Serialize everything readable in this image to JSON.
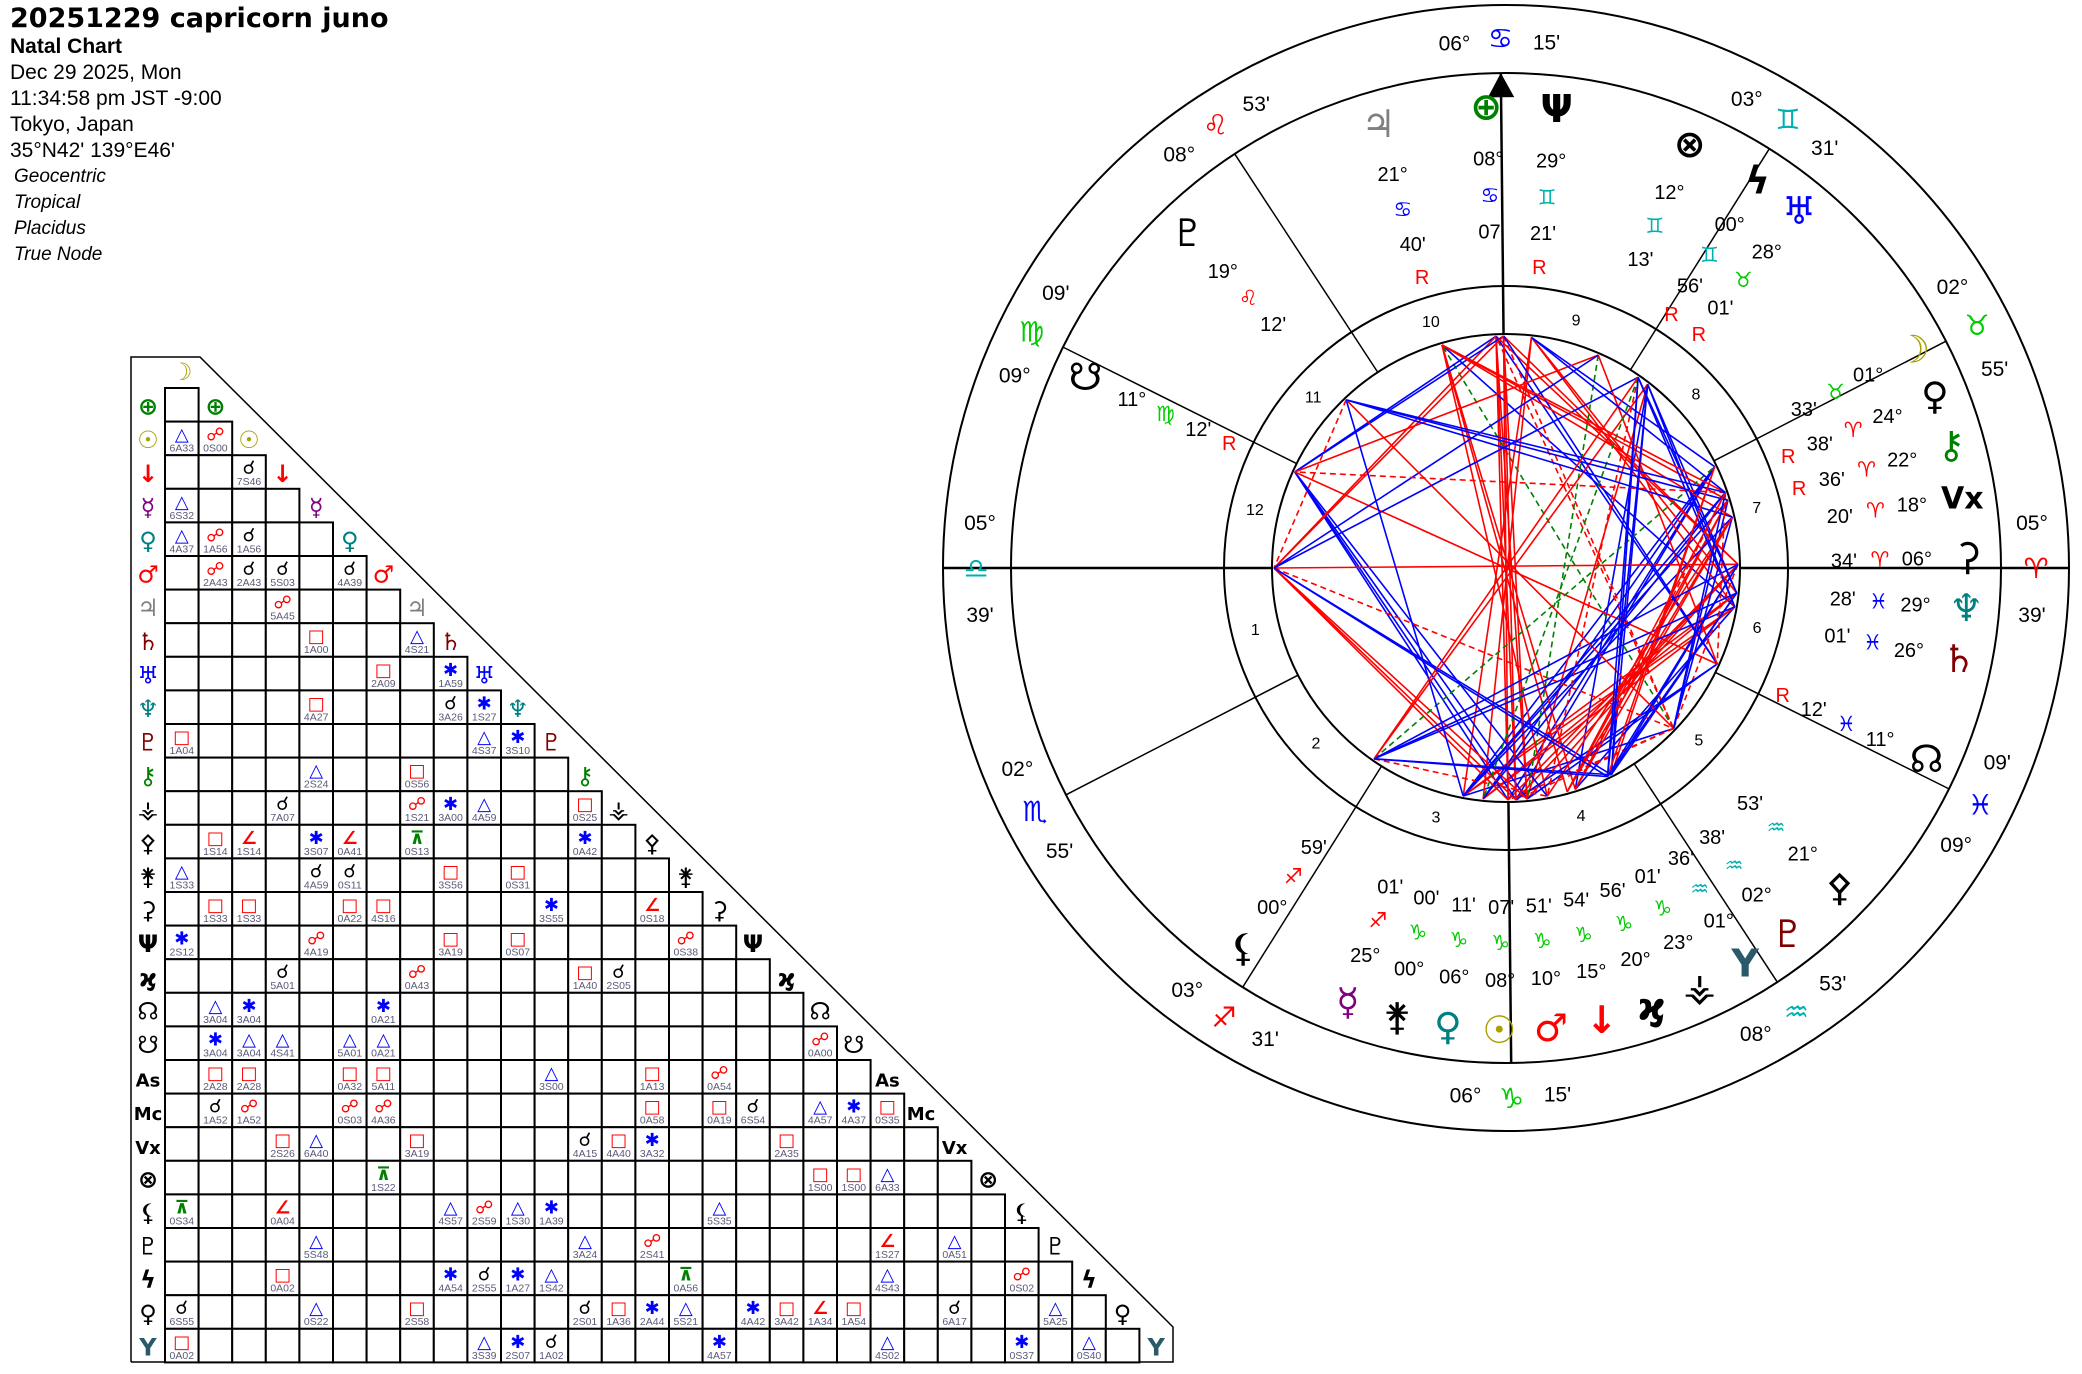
{
  "header": {
    "title": "20251229 capricorn juno",
    "chart_type": "Natal Chart",
    "date": "Dec 29 2025, Mon",
    "time": "11:34:58 pm  JST -9:00",
    "place": "Tokyo, Japan",
    "coords": "35°N42' 139°E46'",
    "options": [
      "Geocentric",
      "Tropical",
      "Placidus",
      "True Node"
    ]
  },
  "colors": {
    "red": "#ff0000",
    "blue": "#0000ff",
    "green": "#008000",
    "fire": "#ff0000",
    "earth": "#00cc00",
    "air": "#00b0b0",
    "water": "#0000ff"
  },
  "bodies": [
    {
      "id": "moon",
      "glyph": "☽",
      "color": "#a8a000"
    },
    {
      "id": "earth",
      "glyph": "⊕",
      "color": "#008000"
    },
    {
      "id": "sun",
      "glyph": "☉",
      "color": "#a8a000"
    },
    {
      "id": "arrow-point",
      "glyph": "↓",
      "color": "#ff0000"
    },
    {
      "id": "mercury",
      "glyph": "☿",
      "color": "#800080"
    },
    {
      "id": "venus",
      "glyph": "♀",
      "color": "#008080"
    },
    {
      "id": "mars",
      "glyph": "♂",
      "color": "#ff0000"
    },
    {
      "id": "jupiter",
      "glyph": "♃",
      "color": "#808080"
    },
    {
      "id": "saturn",
      "glyph": "♄",
      "color": "#800000"
    },
    {
      "id": "uranus",
      "glyph": "♅",
      "color": "#0000ff"
    },
    {
      "id": "neptune",
      "glyph": "♆",
      "color": "#008080"
    },
    {
      "id": "pluto",
      "glyph": "♇",
      "color": "#800000"
    },
    {
      "id": "chiron",
      "glyph": "⚷",
      "color": "#008000"
    },
    {
      "id": "vesta",
      "glyph": "⚶",
      "color": "#000000"
    },
    {
      "id": "pallas",
      "glyph": "⚴",
      "color": "#000000"
    },
    {
      "id": "juno",
      "glyph": "⚵",
      "color": "#000000"
    },
    {
      "id": "ceres",
      "glyph": "⚳",
      "color": "#000000"
    },
    {
      "id": "trident-body",
      "glyph": "Ψ",
      "color": "#000000"
    },
    {
      "id": "key-body",
      "glyph": "ϗ",
      "color": "#000000"
    },
    {
      "id": "north-node",
      "glyph": "☊",
      "color": "#000000"
    },
    {
      "id": "south-node",
      "glyph": "☋",
      "color": "#000000"
    },
    {
      "id": "ascendant",
      "glyph": "As",
      "color": "#000000"
    },
    {
      "id": "midheaven",
      "glyph": "Mc",
      "color": "#000000"
    },
    {
      "id": "vertex",
      "glyph": "Vx",
      "color": "#000000"
    },
    {
      "id": "part-of-fortune",
      "glyph": "⊗",
      "color": "#000000"
    },
    {
      "id": "lilith",
      "glyph": "⚸",
      "color": "#000000"
    },
    {
      "id": "proserpina",
      "glyph": "♇",
      "color": "#000000"
    },
    {
      "id": "sedna",
      "glyph": "ϟ",
      "color": "#000000"
    },
    {
      "id": "eris",
      "glyph": "♀",
      "color": "#000000"
    },
    {
      "id": "y-point",
      "glyph": "Y",
      "color": "#2a5a6a"
    }
  ],
  "aspect_types": {
    "conj": {
      "glyph": "☌",
      "color": "#000000"
    },
    "opp": {
      "glyph": "☍",
      "color": "#ff0000"
    },
    "tri": {
      "glyph": "△",
      "color": "#0000ff"
    },
    "sq": {
      "glyph": "□",
      "color": "#ff0000"
    },
    "sex": {
      "glyph": "✱",
      "color": "#0000ff"
    },
    "semisq": {
      "glyph": "∠",
      "color": "#ff0000"
    },
    "sesq": {
      "glyph": "□",
      "color": "#ff0000"
    },
    "quinc": {
      "glyph": "⊼",
      "color": "#008000"
    }
  },
  "aspects": [
    [
      2,
      0,
      "tri",
      "6A33"
    ],
    [
      2,
      1,
      "opp",
      "0S00"
    ],
    [
      3,
      2,
      "conj",
      "7S46"
    ],
    [
      4,
      0,
      "tri",
      "6S32"
    ],
    [
      5,
      0,
      "tri",
      "4A37"
    ],
    [
      5,
      1,
      "opp",
      "1A56"
    ],
    [
      5,
      2,
      "conj",
      "1A56"
    ],
    [
      6,
      1,
      "opp",
      "2A43"
    ],
    [
      6,
      2,
      "conj",
      "2A43"
    ],
    [
      6,
      3,
      "conj",
      "5S03"
    ],
    [
      6,
      5,
      "conj",
      "4A39"
    ],
    [
      7,
      3,
      "opp",
      "5A45"
    ],
    [
      8,
      4,
      "sq",
      "1A00"
    ],
    [
      8,
      7,
      "tri",
      "4S21"
    ],
    [
      9,
      6,
      "sq",
      "2A09"
    ],
    [
      9,
      8,
      "sex",
      "1A59"
    ],
    [
      10,
      4,
      "sq",
      "4A27"
    ],
    [
      10,
      8,
      "conj",
      "3A26"
    ],
    [
      10,
      9,
      "sex",
      "1S27"
    ],
    [
      11,
      0,
      "sq",
      "1A04"
    ],
    [
      11,
      9,
      "tri",
      "4S37"
    ],
    [
      11,
      10,
      "sex",
      "3S10"
    ],
    [
      12,
      4,
      "tri",
      "2S24"
    ],
    [
      12,
      7,
      "sq",
      "0S56"
    ],
    [
      13,
      3,
      "conj",
      "7A07"
    ],
    [
      13,
      7,
      "opp",
      "1S21"
    ],
    [
      13,
      8,
      "sex",
      "3A00"
    ],
    [
      13,
      9,
      "tri",
      "4A59"
    ],
    [
      13,
      12,
      "sq",
      "0S25"
    ],
    [
      14,
      1,
      "sesq",
      "1S14"
    ],
    [
      14,
      2,
      "semisq",
      "1S14"
    ],
    [
      14,
      4,
      "sex",
      "3S07"
    ],
    [
      14,
      5,
      "semisq",
      "0A41"
    ],
    [
      14,
      7,
      "quinc",
      "0S13"
    ],
    [
      14,
      12,
      "sex",
      "0A42"
    ],
    [
      15,
      0,
      "tri",
      "1S33"
    ],
    [
      15,
      4,
      "conj",
      "4A59"
    ],
    [
      15,
      5,
      "conj",
      "0S11"
    ],
    [
      15,
      8,
      "sq",
      "3S56"
    ],
    [
      15,
      10,
      "sq",
      "0S31"
    ],
    [
      16,
      1,
      "sq",
      "1S33"
    ],
    [
      16,
      2,
      "sq",
      "1S33"
    ],
    [
      16,
      5,
      "sq",
      "0A22"
    ],
    [
      16,
      6,
      "sq",
      "4S16"
    ],
    [
      16,
      11,
      "sex",
      "3S55"
    ],
    [
      16,
      14,
      "semisq",
      "0S18"
    ],
    [
      17,
      0,
      "sex",
      "2S12"
    ],
    [
      17,
      4,
      "opp",
      "4A19"
    ],
    [
      17,
      8,
      "sq",
      "3A19"
    ],
    [
      17,
      10,
      "sq",
      "0S07"
    ],
    [
      17,
      15,
      "opp",
      "0S38"
    ],
    [
      18,
      3,
      "conj",
      "5A01"
    ],
    [
      18,
      7,
      "opp",
      "0A43"
    ],
    [
      18,
      12,
      "sq",
      "1A40"
    ],
    [
      18,
      13,
      "conj",
      "2S05"
    ],
    [
      19,
      1,
      "tri",
      "3A04"
    ],
    [
      19,
      2,
      "sex",
      "3A04"
    ],
    [
      19,
      6,
      "sex",
      "0A21"
    ],
    [
      20,
      1,
      "sex",
      "3A04"
    ],
    [
      20,
      2,
      "tri",
      "3A04"
    ],
    [
      20,
      3,
      "tri",
      "4S41"
    ],
    [
      20,
      5,
      "tri",
      "5A01"
    ],
    [
      20,
      6,
      "tri",
      "0A21"
    ],
    [
      20,
      19,
      "opp",
      "0A00"
    ],
    [
      21,
      1,
      "sq",
      "2A28"
    ],
    [
      21,
      2,
      "sq",
      "2A28"
    ],
    [
      21,
      5,
      "sq",
      "0A32"
    ],
    [
      21,
      6,
      "sq",
      "5A11"
    ],
    [
      21,
      11,
      "tri",
      "3S00"
    ],
    [
      21,
      14,
      "sesq",
      "1A13"
    ],
    [
      21,
      16,
      "opp",
      "0A54"
    ],
    [
      22,
      1,
      "conj",
      "1A52"
    ],
    [
      22,
      2,
      "opp",
      "1A52"
    ],
    [
      22,
      5,
      "opp",
      "0S03"
    ],
    [
      22,
      6,
      "opp",
      "4A36"
    ],
    [
      22,
      14,
      "sesq",
      "0A58"
    ],
    [
      22,
      16,
      "sq",
      "0A19"
    ],
    [
      22,
      17,
      "conj",
      "6S54"
    ],
    [
      22,
      19,
      "tri",
      "4A57"
    ],
    [
      22,
      20,
      "sex",
      "4A37"
    ],
    [
      22,
      21,
      "sq",
      "0S35"
    ],
    [
      23,
      3,
      "sq",
      "2S26"
    ],
    [
      23,
      4,
      "tri",
      "6A40"
    ],
    [
      23,
      7,
      "sq",
      "3A19"
    ],
    [
      23,
      12,
      "conj",
      "4A15"
    ],
    [
      23,
      13,
      "sq",
      "4A40"
    ],
    [
      23,
      14,
      "sex",
      "3A32"
    ],
    [
      23,
      18,
      "sq",
      "2A35"
    ],
    [
      24,
      6,
      "quinc",
      "1S22"
    ],
    [
      24,
      19,
      "sq",
      "1S00"
    ],
    [
      24,
      20,
      "sq",
      "1S00"
    ],
    [
      24,
      21,
      "tri",
      "6A33"
    ],
    [
      25,
      0,
      "quinc",
      "0S34"
    ],
    [
      25,
      3,
      "semisq",
      "0A04"
    ],
    [
      25,
      8,
      "tri",
      "4S57"
    ],
    [
      25,
      9,
      "opp",
      "2S59"
    ],
    [
      25,
      10,
      "tri",
      "1S30"
    ],
    [
      25,
      11,
      "sex",
      "1A39"
    ],
    [
      25,
      16,
      "tri",
      "5S35"
    ],
    [
      26,
      4,
      "tri",
      "5S48"
    ],
    [
      26,
      12,
      "tri",
      "3A24"
    ],
    [
      26,
      14,
      "opp",
      "2S41"
    ],
    [
      26,
      21,
      "semisq",
      "1S27"
    ],
    [
      26,
      23,
      "tri",
      "0A51"
    ],
    [
      27,
      3,
      "sesq",
      "0A02"
    ],
    [
      27,
      8,
      "sex",
      "4A54"
    ],
    [
      27,
      9,
      "conj",
      "2S55"
    ],
    [
      27,
      10,
      "sex",
      "1A27"
    ],
    [
      27,
      11,
      "tri",
      "1S42"
    ],
    [
      27,
      15,
      "quinc",
      "0A56"
    ],
    [
      27,
      21,
      "tri",
      "4S43"
    ],
    [
      27,
      25,
      "opp",
      "0S02"
    ],
    [
      28,
      0,
      "conj",
      "6S55"
    ],
    [
      28,
      4,
      "tri",
      "0S22"
    ],
    [
      28,
      7,
      "sq",
      "2S58"
    ],
    [
      28,
      12,
      "conj",
      "2S01"
    ],
    [
      28,
      13,
      "sesq",
      "1A36"
    ],
    [
      28,
      14,
      "sex",
      "2A44"
    ],
    [
      28,
      15,
      "tri",
      "5S21"
    ],
    [
      28,
      17,
      "sex",
      "4A42"
    ],
    [
      28,
      18,
      "sq",
      "3A42"
    ],
    [
      28,
      19,
      "semisq",
      "1A34"
    ],
    [
      28,
      20,
      "sesq",
      "1A54"
    ],
    [
      28,
      23,
      "conj",
      "6A17"
    ],
    [
      28,
      26,
      "tri",
      "5A25"
    ],
    [
      29,
      0,
      "sq",
      "0A02"
    ],
    [
      29,
      9,
      "tri",
      "3S39"
    ],
    [
      29,
      10,
      "sex",
      "2S07"
    ],
    [
      29,
      11,
      "conj",
      "1A02"
    ],
    [
      29,
      16,
      "sex",
      "4A57"
    ],
    [
      29,
      21,
      "tri",
      "4S02"
    ],
    [
      29,
      25,
      "sex",
      "0S37"
    ],
    [
      29,
      27,
      "tri",
      "0S40"
    ]
  ],
  "signs": [
    {
      "glyph": "♈",
      "el": "fire"
    },
    {
      "glyph": "♉",
      "el": "earth"
    },
    {
      "glyph": "♊",
      "el": "air"
    },
    {
      "glyph": "♋",
      "el": "water"
    },
    {
      "glyph": "♌",
      "el": "fire"
    },
    {
      "glyph": "♍",
      "el": "earth"
    },
    {
      "glyph": "♎",
      "el": "air"
    },
    {
      "glyph": "♏",
      "el": "water"
    },
    {
      "glyph": "♐",
      "el": "fire"
    },
    {
      "glyph": "♑",
      "el": "earth"
    },
    {
      "glyph": "♒",
      "el": "air"
    },
    {
      "glyph": "♓",
      "el": "water"
    }
  ],
  "wheel": {
    "house_numbers": [
      "1",
      "2",
      "3",
      "4",
      "5",
      "6",
      "7",
      "8",
      "9",
      "10",
      "11",
      "12"
    ],
    "cusps": [
      {
        "house": 1,
        "deg": "05°",
        "sign": 6,
        "min": "39'",
        "d": 5,
        "m": 39
      },
      {
        "house": 2,
        "deg": "02°",
        "sign": 7,
        "min": "55'",
        "d": 2,
        "m": 55
      },
      {
        "house": 3,
        "deg": "03°",
        "sign": 8,
        "min": "31'",
        "d": 3,
        "m": 31
      },
      {
        "house": 4,
        "deg": "06°",
        "sign": 9,
        "min": "15'",
        "d": 6,
        "m": 15
      },
      {
        "house": 5,
        "deg": "08°",
        "sign": 10,
        "min": "53'",
        "d": 8,
        "m": 53
      },
      {
        "house": 6,
        "deg": "09°",
        "sign": 11,
        "min": "09'",
        "d": 9,
        "m": 9
      },
      {
        "house": 7,
        "deg": "05°",
        "sign": 0,
        "min": "39'",
        "d": 5,
        "m": 39
      },
      {
        "house": 8,
        "deg": "02°",
        "sign": 1,
        "min": "55'",
        "d": 2,
        "m": 55
      },
      {
        "house": 9,
        "deg": "03°",
        "sign": 2,
        "min": "31'",
        "d": 3,
        "m": 31
      },
      {
        "house": 10,
        "deg": "06°",
        "sign": 3,
        "min": "15'",
        "d": 6,
        "m": 15
      },
      {
        "house": 11,
        "deg": "08°",
        "sign": 4,
        "min": "53'",
        "d": 8,
        "m": 53
      },
      {
        "house": 12,
        "deg": "09°",
        "sign": 5,
        "min": "09'",
        "d": 9,
        "m": 9
      }
    ],
    "retro_label": "R",
    "planets": [
      {
        "body": 0,
        "deg": "01°",
        "sign": 1,
        "min": "33'",
        "d": 1,
        "m": 33,
        "retro": false
      },
      {
        "body": 1,
        "deg": "08°",
        "sign": 3,
        "min": "07'",
        "d": 8,
        "m": 7,
        "retro": false
      },
      {
        "body": 2,
        "deg": "08°",
        "sign": 9,
        "min": "07'",
        "d": 8,
        "m": 7,
        "retro": false
      },
      {
        "body": 3,
        "deg": "15°",
        "sign": 9,
        "min": "54'",
        "d": 15,
        "m": 54,
        "retro": false
      },
      {
        "body": 4,
        "deg": "25°",
        "sign": 8,
        "min": "01'",
        "d": 25,
        "m": 1,
        "retro": false
      },
      {
        "body": 5,
        "deg": "06°",
        "sign": 9,
        "min": "11'",
        "d": 6,
        "m": 11,
        "retro": false
      },
      {
        "body": 6,
        "deg": "10°",
        "sign": 9,
        "min": "51'",
        "d": 10,
        "m": 51,
        "retro": false
      },
      {
        "body": 7,
        "deg": "21°",
        "sign": 3,
        "min": "40'",
        "d": 21,
        "m": 40,
        "retro": true
      },
      {
        "body": 8,
        "deg": "26°",
        "sign": 11,
        "min": "01'",
        "d": 26,
        "m": 1,
        "retro": false
      },
      {
        "body": 9,
        "deg": "28°",
        "sign": 1,
        "min": "01'",
        "d": 28,
        "m": 1,
        "retro": true
      },
      {
        "body": 10,
        "deg": "29°",
        "sign": 11,
        "min": "28'",
        "d": 29,
        "m": 28,
        "retro": false
      },
      {
        "body": 11,
        "deg": "02°",
        "sign": 10,
        "min": "38'",
        "d": 2,
        "m": 38,
        "retro": false
      },
      {
        "body": 12,
        "deg": "22°",
        "sign": 0,
        "min": "36'",
        "d": 22,
        "m": 36,
        "retro": true
      },
      {
        "body": 13,
        "deg": "23°",
        "sign": 9,
        "min": "01'",
        "d": 23,
        "m": 1,
        "retro": false
      },
      {
        "body": 14,
        "deg": "21°",
        "sign": 10,
        "min": "53'",
        "d": 21,
        "m": 53,
        "retro": false
      },
      {
        "body": 15,
        "deg": "00°",
        "sign": 9,
        "min": "00'",
        "d": 0,
        "m": 0,
        "retro": false
      },
      {
        "body": 16,
        "deg": "06°",
        "sign": 0,
        "min": "34'",
        "d": 6,
        "m": 34,
        "retro": false
      },
      {
        "body": 17,
        "deg": "29°",
        "sign": 2,
        "min": "21'",
        "d": 29,
        "m": 21,
        "retro": true
      },
      {
        "body": 18,
        "deg": "20°",
        "sign": 9,
        "min": "56'",
        "d": 20,
        "m": 56,
        "retro": false
      },
      {
        "body": 19,
        "deg": "11°",
        "sign": 11,
        "min": "12'",
        "d": 11,
        "m": 12,
        "retro": true
      },
      {
        "body": 20,
        "deg": "11°",
        "sign": 5,
        "min": "12'",
        "d": 11,
        "m": 12,
        "retro": true
      },
      {
        "body": 23,
        "deg": "18°",
        "sign": 0,
        "min": "20'",
        "d": 18,
        "m": 20,
        "retro": false
      },
      {
        "body": 24,
        "deg": "12°",
        "sign": 2,
        "min": "13'",
        "d": 12,
        "m": 13,
        "retro": false
      },
      {
        "body": 25,
        "deg": "00°",
        "sign": 8,
        "min": "59'",
        "d": 0,
        "m": 59,
        "retro": false
      },
      {
        "body": 26,
        "deg": "19°",
        "sign": 4,
        "min": "12'",
        "d": 19,
        "m": 12,
        "retro": false
      },
      {
        "body": 27,
        "deg": "00°",
        "sign": 2,
        "min": "56'",
        "d": 0,
        "m": 56,
        "retro": true
      },
      {
        "body": 28,
        "deg": "24°",
        "sign": 0,
        "min": "38'",
        "d": 24,
        "m": 38,
        "retro": true
      },
      {
        "body": 29,
        "deg": "01°",
        "sign": 10,
        "min": "36'",
        "d": 1,
        "m": 36,
        "retro": false
      }
    ]
  }
}
